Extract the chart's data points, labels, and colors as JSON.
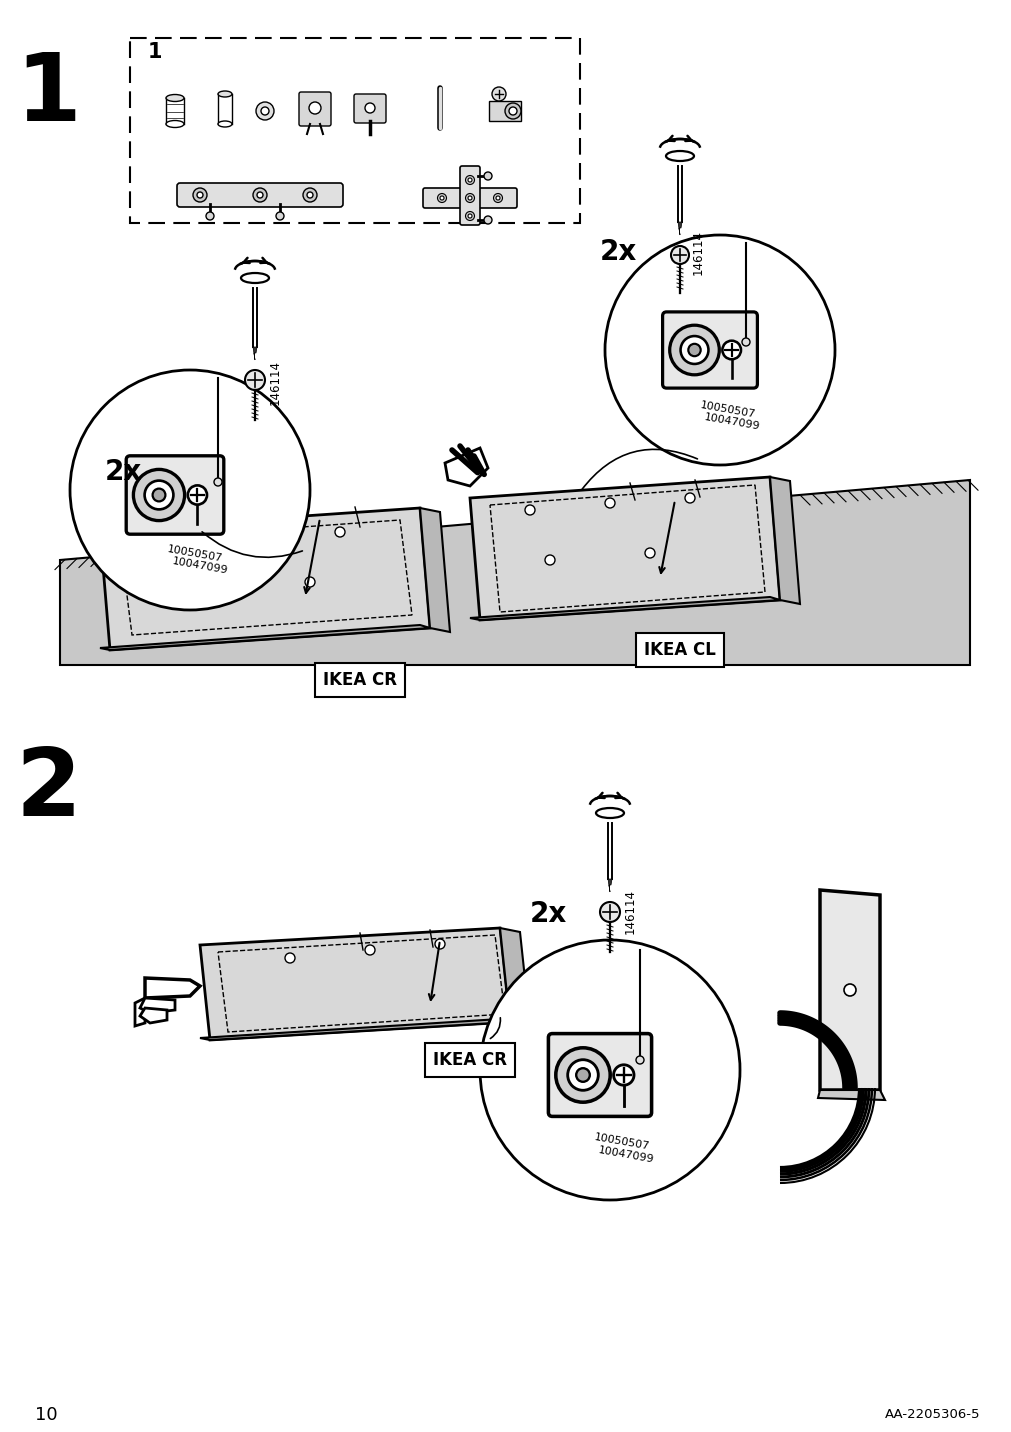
{
  "page_number": "10",
  "doc_id": "AA-2205306-5",
  "bg_color": "#ffffff",
  "step1_label": "1",
  "step2_label": "2",
  "parts_box_label": "1",
  "ikea_cr_label": "IKEA CR",
  "ikea_cl_label": "IKEA CL",
  "count_2x": "2x",
  "part_id1": "10050507",
  "part_id2": "10047099",
  "screw_id": "146114",
  "fig_width": 10.12,
  "fig_height": 14.32,
  "dpi": 100
}
